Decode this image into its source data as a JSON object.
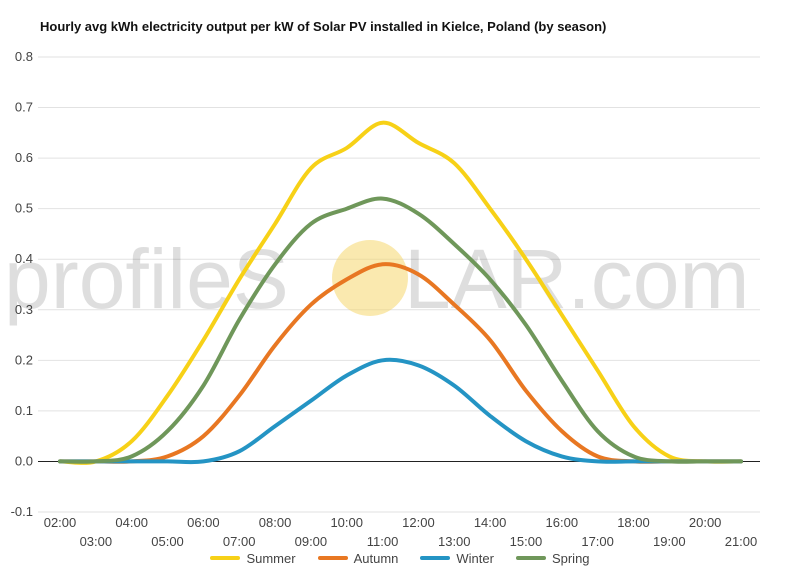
{
  "chart_data": {
    "type": "line",
    "title": "Hourly avg kWh electricity output per kW of Solar PV installed in Kielce, Poland (by season)",
    "x": [
      "02:00",
      "03:00",
      "04:00",
      "05:00",
      "06:00",
      "07:00",
      "08:00",
      "09:00",
      "10:00",
      "11:00",
      "12:00",
      "13:00",
      "14:00",
      "15:00",
      "16:00",
      "17:00",
      "18:00",
      "19:00",
      "20:00",
      "21:00"
    ],
    "ylim": [
      -0.1,
      0.8
    ],
    "yticks": [
      "-0.1",
      "0.0",
      "0.1",
      "0.2",
      "0.3",
      "0.4",
      "0.5",
      "0.6",
      "0.7",
      "0.8"
    ],
    "grid": true,
    "legend_position": "bottom",
    "series": [
      {
        "name": "Summer",
        "color": "#f7d117",
        "values": [
          0.0,
          0.0,
          0.04,
          0.13,
          0.24,
          0.36,
          0.47,
          0.58,
          0.62,
          0.67,
          0.63,
          0.59,
          0.5,
          0.4,
          0.29,
          0.18,
          0.07,
          0.01,
          0.0,
          0.0
        ]
      },
      {
        "name": "Autumn",
        "color": "#e87722",
        "values": [
          0.0,
          0.0,
          0.0,
          0.01,
          0.05,
          0.13,
          0.23,
          0.31,
          0.36,
          0.39,
          0.37,
          0.31,
          0.24,
          0.14,
          0.06,
          0.01,
          0.0,
          0.0,
          0.0,
          0.0
        ]
      },
      {
        "name": "Winter",
        "color": "#2494c4",
        "values": [
          0.0,
          0.0,
          0.0,
          0.0,
          0.0,
          0.02,
          0.07,
          0.12,
          0.17,
          0.2,
          0.19,
          0.15,
          0.09,
          0.04,
          0.01,
          0.0,
          0.0,
          0.0,
          0.0,
          0.0
        ]
      },
      {
        "name": "Spring",
        "color": "#6f975a",
        "values": [
          0.0,
          0.0,
          0.01,
          0.06,
          0.15,
          0.28,
          0.39,
          0.47,
          0.5,
          0.52,
          0.49,
          0.43,
          0.36,
          0.27,
          0.16,
          0.06,
          0.01,
          0.0,
          0.0,
          0.0
        ]
      }
    ]
  },
  "watermark": {
    "text_left": "profileS",
    "text_right": "LAR.com",
    "sun_color": "#f5d76e"
  }
}
